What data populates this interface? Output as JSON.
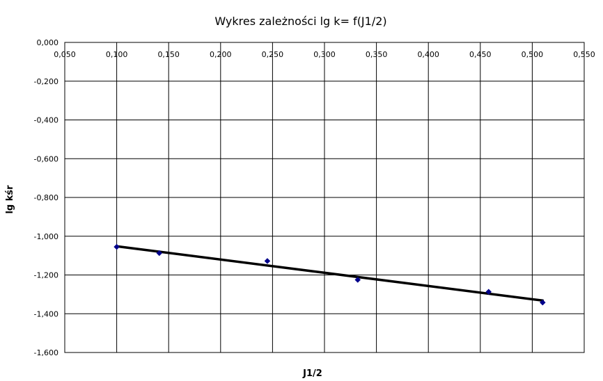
{
  "chart_data": {
    "type": "scatter",
    "title": "Wykres zależności lg k= f(J1/2)",
    "xlabel": "J1/2",
    "ylabel": "lg kśr",
    "xlim": [
      0.05,
      0.55
    ],
    "ylim": [
      -1.6,
      0.0
    ],
    "x_ticks": [
      "0,050",
      "0,100",
      "0,150",
      "0,200",
      "0,250",
      "0,300",
      "0,350",
      "0,400",
      "0,450",
      "0,500",
      "0,550"
    ],
    "y_ticks": [
      "0,000",
      "-0,200",
      "-0,400",
      "-0,600",
      "-0,800",
      "-1,000",
      "-1,200",
      "-1,400",
      "-1,600"
    ],
    "grid": true,
    "legend": "none",
    "x_axis_position": "top",
    "series": [
      {
        "color": "#00008B",
        "marker": "diamond",
        "points": [
          {
            "x": 0.1,
            "y": -1.055
          },
          {
            "x": 0.141,
            "y": -1.087
          },
          {
            "x": 0.245,
            "y": -1.128
          },
          {
            "x": 0.332,
            "y": -1.225
          },
          {
            "x": 0.458,
            "y": -1.287
          },
          {
            "x": 0.51,
            "y": -1.342
          }
        ]
      }
    ],
    "trendline": {
      "type": "linear",
      "color": "#000000",
      "points": [
        {
          "x": 0.1,
          "y": -1.052
        },
        {
          "x": 0.51,
          "y": -1.332
        }
      ]
    }
  }
}
